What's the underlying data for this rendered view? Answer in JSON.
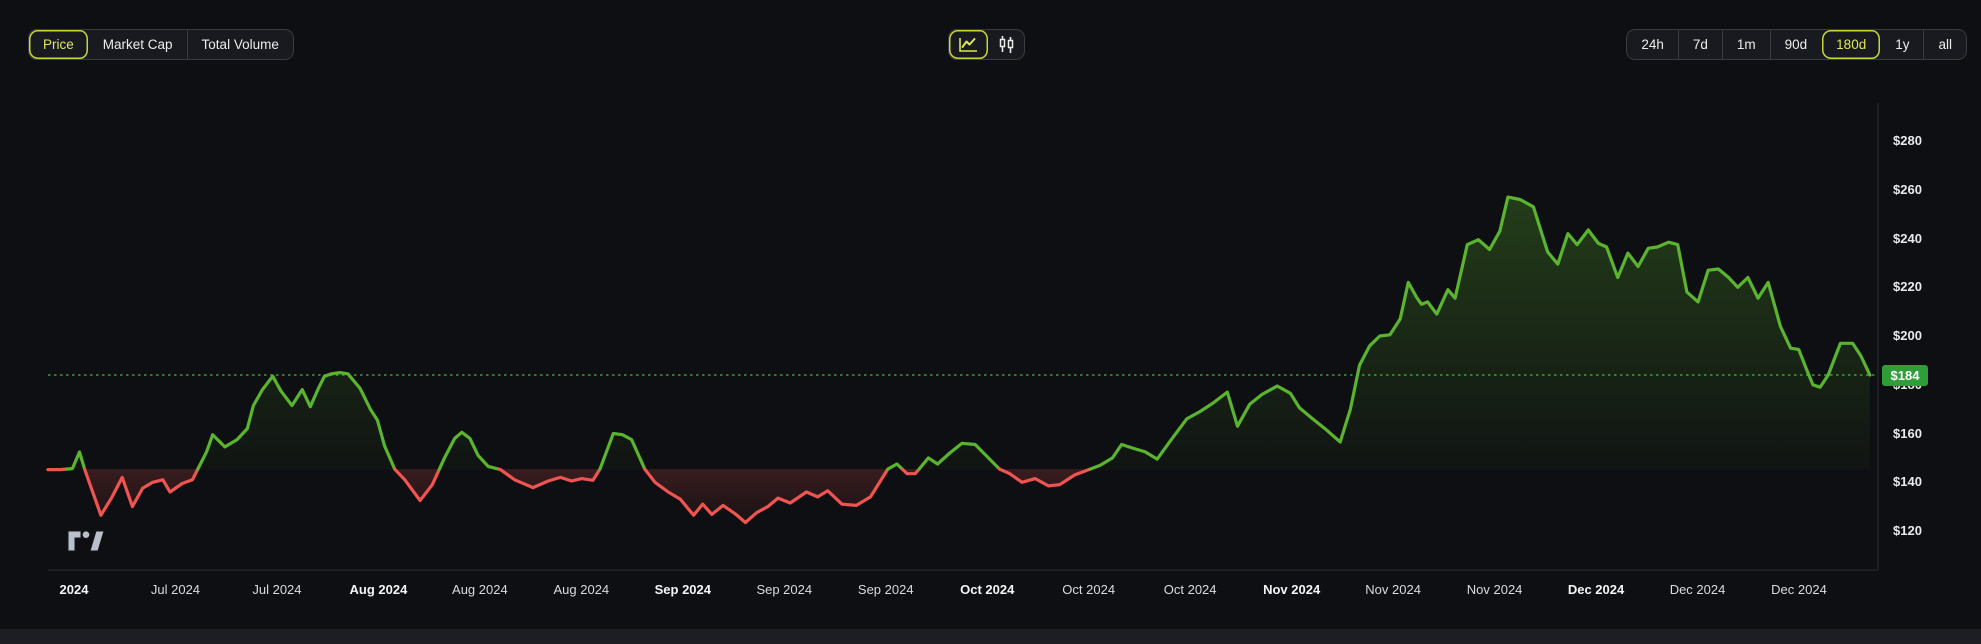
{
  "toolbar": {
    "metric_tabs": [
      {
        "label": "Price",
        "selected": true
      },
      {
        "label": "Market Cap",
        "selected": false
      },
      {
        "label": "Total Volume",
        "selected": false
      }
    ],
    "chart_types": [
      {
        "icon": "line-chart-icon",
        "selected": true
      },
      {
        "icon": "candlestick-icon",
        "selected": false
      }
    ],
    "ranges": [
      {
        "label": "24h",
        "selected": false
      },
      {
        "label": "7d",
        "selected": false
      },
      {
        "label": "1m",
        "selected": false
      },
      {
        "label": "90d",
        "selected": false
      },
      {
        "label": "180d",
        "selected": true
      },
      {
        "label": "1y",
        "selected": false
      },
      {
        "label": "all",
        "selected": false
      }
    ]
  },
  "theme": {
    "bg": "#0e0f12",
    "panel": "#191a1f",
    "border": "#3a3c42",
    "text": "#eceded",
    "accent_text": "#dee857",
    "accent_border": "#c7d82c",
    "up": "#5bb42d",
    "down": "#ef5451",
    "badge_bg": "#2f9e38",
    "dotted": "#3fa83c",
    "axis_line": "#2d2f34",
    "tick_text": "#e9eaec",
    "xlabel": "#d9dbde",
    "xlabel_bold": "#f4f5f6",
    "logo": "#c9ced9"
  },
  "chart_data": {
    "type": "line",
    "unit": "USD",
    "time_range": "180d",
    "baseline_price": 145.4,
    "current_price": 184,
    "current_price_label": "$184",
    "grid": "off",
    "legend": "none",
    "y_ticks": [
      {
        "value": 280,
        "label": "$280"
      },
      {
        "value": 260,
        "label": "$260"
      },
      {
        "value": 240,
        "label": "$240"
      },
      {
        "value": 220,
        "label": "$220"
      },
      {
        "value": 200,
        "label": "$200"
      },
      {
        "value": 180,
        "label": "$180"
      },
      {
        "value": 160,
        "label": "$160"
      },
      {
        "value": 140,
        "label": "$140"
      },
      {
        "value": 120,
        "label": "$120"
      }
    ],
    "x_ticks": [
      {
        "text": "2024",
        "bold": true
      },
      {
        "text": "Jul 2024",
        "bold": false
      },
      {
        "text": "Jul 2024",
        "bold": false
      },
      {
        "text": "Aug 2024",
        "bold": true
      },
      {
        "text": "Aug 2024",
        "bold": false
      },
      {
        "text": "Aug 2024",
        "bold": false
      },
      {
        "text": "Sep 2024",
        "bold": true
      },
      {
        "text": "Sep 2024",
        "bold": false
      },
      {
        "text": "Sep 2024",
        "bold": false
      },
      {
        "text": "Oct 2024",
        "bold": true
      },
      {
        "text": "Oct 2024",
        "bold": false
      },
      {
        "text": "Oct 2024",
        "bold": false
      },
      {
        "text": "Nov 2024",
        "bold": true
      },
      {
        "text": "Nov 2024",
        "bold": false
      },
      {
        "text": "Nov 2024",
        "bold": false
      },
      {
        "text": "Dec 2024",
        "bold": true
      },
      {
        "text": "Dec 2024",
        "bold": false
      },
      {
        "text": "Dec 2024",
        "bold": false
      }
    ],
    "series": [
      {
        "name": "Price",
        "points": [
          [
            0,
            145.2
          ],
          [
            1.2,
            145.2
          ],
          [
            2.4,
            145.6
          ],
          [
            3.1,
            152.4
          ],
          [
            3.6,
            145.4
          ],
          [
            5.2,
            126.5
          ],
          [
            6.3,
            134
          ],
          [
            7.3,
            142
          ],
          [
            8.3,
            130
          ],
          [
            9.3,
            137.5
          ],
          [
            10.3,
            140
          ],
          [
            11.3,
            141
          ],
          [
            12,
            136
          ],
          [
            13.2,
            139.5
          ],
          [
            14.2,
            141
          ],
          [
            15.6,
            152.5
          ],
          [
            16.2,
            159.5
          ],
          [
            17.4,
            154.5
          ],
          [
            18.6,
            157.5
          ],
          [
            19.6,
            162
          ],
          [
            20.2,
            171.5
          ],
          [
            21.1,
            178
          ],
          [
            22.1,
            183.5
          ],
          [
            22.9,
            177.5
          ],
          [
            24,
            171.5
          ],
          [
            25,
            178
          ],
          [
            25.8,
            171
          ],
          [
            26.6,
            178.5
          ],
          [
            27.2,
            183.5
          ],
          [
            27.9,
            184.5
          ],
          [
            28.7,
            185
          ],
          [
            29.5,
            184.5
          ],
          [
            30.7,
            178.5
          ],
          [
            31.7,
            170
          ],
          [
            32.4,
            165.5
          ],
          [
            33.1,
            155
          ],
          [
            34.1,
            145.4
          ],
          [
            35.1,
            141
          ],
          [
            36.6,
            132.5
          ],
          [
            37.8,
            139
          ],
          [
            39,
            150
          ],
          [
            40,
            158
          ],
          [
            40.7,
            160.5
          ],
          [
            41.5,
            158
          ],
          [
            42.3,
            151
          ],
          [
            43.3,
            146.5
          ],
          [
            44.5,
            145.2
          ],
          [
            45.9,
            141
          ],
          [
            47.7,
            137.8
          ],
          [
            49.2,
            140.5
          ],
          [
            50.4,
            142
          ],
          [
            51.5,
            140.5
          ],
          [
            52.5,
            141.5
          ],
          [
            53.6,
            140.8
          ],
          [
            54.3,
            145.5
          ],
          [
            55.6,
            160
          ],
          [
            56.5,
            159.5
          ],
          [
            57.4,
            157.5
          ],
          [
            58.7,
            145.4
          ],
          [
            59.7,
            140
          ],
          [
            61,
            136
          ],
          [
            62.2,
            133
          ],
          [
            63.5,
            126.5
          ],
          [
            64.4,
            131
          ],
          [
            65.3,
            126.8
          ],
          [
            66.4,
            130.5
          ],
          [
            67.6,
            127
          ],
          [
            68.6,
            123.5
          ],
          [
            69.7,
            127.5
          ],
          [
            70.8,
            130
          ],
          [
            71.8,
            133.5
          ],
          [
            73,
            131.5
          ],
          [
            74.6,
            136
          ],
          [
            75.7,
            134
          ],
          [
            76.7,
            136.5
          ],
          [
            78.1,
            131
          ],
          [
            79.5,
            130.5
          ],
          [
            80.9,
            134
          ],
          [
            82.6,
            145.4
          ],
          [
            83.5,
            147.5
          ],
          [
            84.5,
            143.5
          ],
          [
            85.3,
            143.5
          ],
          [
            86.6,
            150
          ],
          [
            87.5,
            147.5
          ],
          [
            88.7,
            152
          ],
          [
            89.9,
            156
          ],
          [
            91.2,
            155.5
          ],
          [
            92.5,
            150
          ],
          [
            93.6,
            145.4
          ],
          [
            94.6,
            143.5
          ],
          [
            95.8,
            140
          ],
          [
            97.1,
            141.5
          ],
          [
            98.4,
            138.5
          ],
          [
            99.5,
            139
          ],
          [
            101,
            143
          ],
          [
            102.5,
            145.4
          ],
          [
            103.5,
            147
          ],
          [
            104.7,
            150
          ],
          [
            105.6,
            155.5
          ],
          [
            106.7,
            154
          ],
          [
            107.9,
            152.5
          ],
          [
            109.1,
            149.5
          ],
          [
            110.4,
            157
          ],
          [
            112,
            166
          ],
          [
            113.3,
            169
          ],
          [
            114.6,
            172.5
          ],
          [
            116,
            177
          ],
          [
            117,
            163
          ],
          [
            118.2,
            172
          ],
          [
            119.4,
            176
          ],
          [
            120.9,
            179.5
          ],
          [
            122.2,
            176.5
          ],
          [
            123.1,
            170.5
          ],
          [
            124.4,
            166
          ],
          [
            125.6,
            162
          ],
          [
            127.1,
            156.5
          ],
          [
            128.1,
            170
          ],
          [
            129,
            188
          ],
          [
            130,
            196
          ],
          [
            131,
            200
          ],
          [
            132,
            200.5
          ],
          [
            133,
            207
          ],
          [
            133.8,
            222
          ],
          [
            134.6,
            216
          ],
          [
            135.1,
            213
          ],
          [
            135.7,
            214
          ],
          [
            136.6,
            209
          ],
          [
            137.7,
            219
          ],
          [
            138.4,
            215.5
          ],
          [
            139.6,
            237.5
          ],
          [
            140.7,
            239.5
          ],
          [
            141.8,
            235.5
          ],
          [
            142.8,
            243
          ],
          [
            143.6,
            257
          ],
          [
            144.8,
            256
          ],
          [
            146.1,
            253
          ],
          [
            147.5,
            234.5
          ],
          [
            148.5,
            229.5
          ],
          [
            149.5,
            242
          ],
          [
            150.4,
            237.5
          ],
          [
            151.5,
            243.5
          ],
          [
            152.5,
            238
          ],
          [
            153.3,
            236.5
          ],
          [
            154.4,
            224
          ],
          [
            155.4,
            234
          ],
          [
            156.4,
            228.5
          ],
          [
            157.4,
            236
          ],
          [
            158.3,
            236.5
          ],
          [
            159.4,
            238.5
          ],
          [
            160.3,
            237.5
          ],
          [
            161.2,
            218
          ],
          [
            162.3,
            214
          ],
          [
            163.3,
            227
          ],
          [
            164.3,
            227.5
          ],
          [
            165.3,
            224
          ],
          [
            166.2,
            220
          ],
          [
            167.2,
            224
          ],
          [
            168.2,
            215.5
          ],
          [
            169.2,
            222
          ],
          [
            170.4,
            204
          ],
          [
            171.4,
            195
          ],
          [
            172.2,
            194.5
          ],
          [
            173,
            186
          ],
          [
            173.6,
            180
          ],
          [
            174.3,
            179
          ],
          [
            175.1,
            184
          ],
          [
            176.3,
            197
          ],
          [
            177.5,
            197
          ],
          [
            178.3,
            192
          ],
          [
            179.2,
            184
          ]
        ]
      }
    ]
  }
}
